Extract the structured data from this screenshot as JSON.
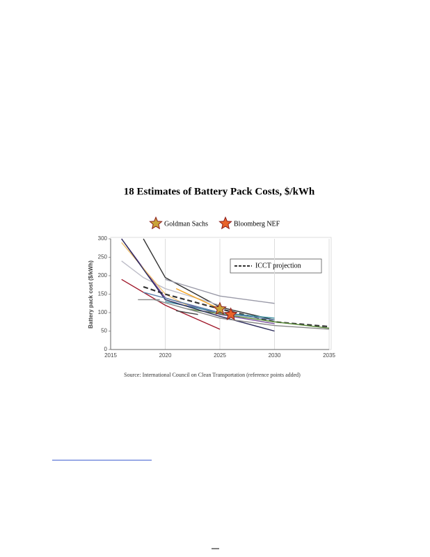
{
  "chart_data": {
    "type": "line",
    "title": "18 Estimates of Battery Pack Costs, $/kWh",
    "y_label": "Battery pack cost ($/kWh)",
    "source": "Source: International Council on Clean Transportation (reference points added)",
    "xlim": [
      2015,
      2035
    ],
    "xticks": [
      2015,
      2020,
      2025,
      2030,
      2035
    ],
    "ylim": [
      0,
      300
    ],
    "yticks": [
      0,
      50,
      100,
      150,
      200,
      250,
      300
    ],
    "grid": true,
    "series": [
      {
        "color": "#333333",
        "x": [
          2018,
          2020,
          2025,
          2030
        ],
        "values": [
          300,
          195,
          115,
          80
        ]
      },
      {
        "color": "#9a9aa8",
        "x": [
          2020,
          2025,
          2030
        ],
        "values": [
          190,
          145,
          125
        ]
      },
      {
        "color": "#bdbdc8",
        "x": [
          2016,
          2018,
          2020,
          2025
        ],
        "values": [
          240,
          195,
          165,
          120
        ]
      },
      {
        "color": "#7b4f9e",
        "x": [
          2016,
          2020,
          2025,
          2030
        ],
        "values": [
          300,
          140,
          95,
          70
        ]
      },
      {
        "color": "#a0182a",
        "x": [
          2016,
          2020,
          2025
        ],
        "values": [
          190,
          120,
          55
        ]
      },
      {
        "color": "#8a8a8a",
        "x": [
          2017.5,
          2019.5
        ],
        "values": [
          135,
          135
        ]
      },
      {
        "color": "#f5a623",
        "x": [
          2021,
          2025
        ],
        "values": [
          165,
          110
        ]
      },
      {
        "color": "#f0c070",
        "x": [
          2016,
          2020,
          2022
        ],
        "values": [
          290,
          150,
          120
        ]
      },
      {
        "name": "ICCT projection",
        "color": "#333333",
        "dashed": true,
        "x": [
          2018,
          2020,
          2025,
          2030,
          2035
        ],
        "values": [
          170,
          150,
          110,
          75,
          62
        ]
      },
      {
        "color": "#3a8fa0",
        "x": [
          2020,
          2025,
          2030
        ],
        "values": [
          130,
          100,
          85
        ]
      },
      {
        "color": "#5a8a3a",
        "x": [
          2022,
          2030,
          2035
        ],
        "values": [
          110,
          75,
          58
        ]
      },
      {
        "color": "#2a2a5a",
        "x": [
          2016,
          2020,
          2025,
          2030
        ],
        "values": [
          300,
          135,
          90,
          50
        ]
      },
      {
        "color": "#5b7fa8",
        "x": [
          2018,
          2025,
          2030
        ],
        "values": [
          155,
          100,
          80
        ]
      },
      {
        "color": "#888888",
        "x": [
          2019,
          2025,
          2030,
          2035
        ],
        "values": [
          135,
          85,
          65,
          55
        ]
      },
      {
        "color": "#444444",
        "x": [
          2021,
          2023
        ],
        "values": [
          105,
          95
        ]
      }
    ],
    "markers": [
      {
        "name": "Goldman Sachs",
        "x": 2025,
        "y": 110,
        "color": "#c9a43a"
      },
      {
        "name": "Bloomberg NEF",
        "x": 2026,
        "y": 95,
        "color": "#e8632a"
      }
    ]
  }
}
